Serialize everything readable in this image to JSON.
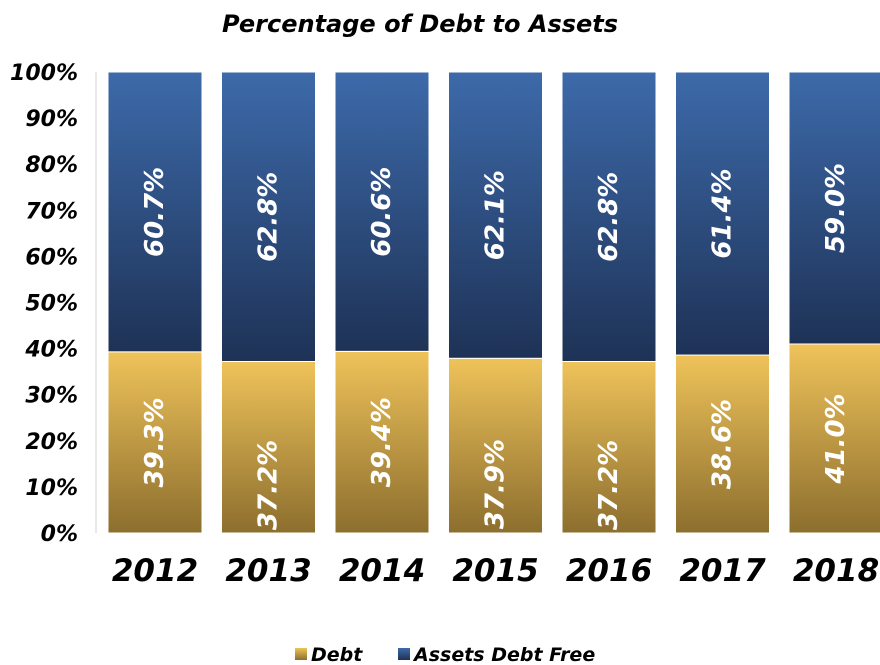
{
  "chart_data": {
    "type": "bar",
    "stacked": true,
    "title": "Percentage of Debt to Assets",
    "categories": [
      "2012",
      "2013",
      "2014",
      "2015",
      "2016",
      "2017",
      "2018"
    ],
    "series": [
      {
        "name": "Debt",
        "values": [
          39.3,
          37.2,
          39.4,
          37.9,
          37.2,
          38.6,
          41.0
        ],
        "labels": [
          "39.3%",
          "37.2%",
          "39.4%",
          "37.9%",
          "37.2%",
          "38.6%",
          "41.0%"
        ],
        "color_top": "#efc35a",
        "color_bottom": "#8c6e2e"
      },
      {
        "name": "Assets Debt Free",
        "values": [
          60.7,
          62.8,
          60.6,
          62.1,
          62.8,
          61.4,
          59.0
        ],
        "labels": [
          "60.7%",
          "62.8%",
          "60.6%",
          "62.1%",
          "62.8%",
          "61.4%",
          "59.0%"
        ],
        "color_top": "#3d6aaa",
        "color_bottom": "#1e3256"
      }
    ],
    "yticks": [
      "0%",
      "10%",
      "20%",
      "30%",
      "40%",
      "50%",
      "60%",
      "70%",
      "80%",
      "90%",
      "100%"
    ],
    "ylim": [
      0,
      100
    ],
    "grid": false,
    "legend": "bottom"
  }
}
